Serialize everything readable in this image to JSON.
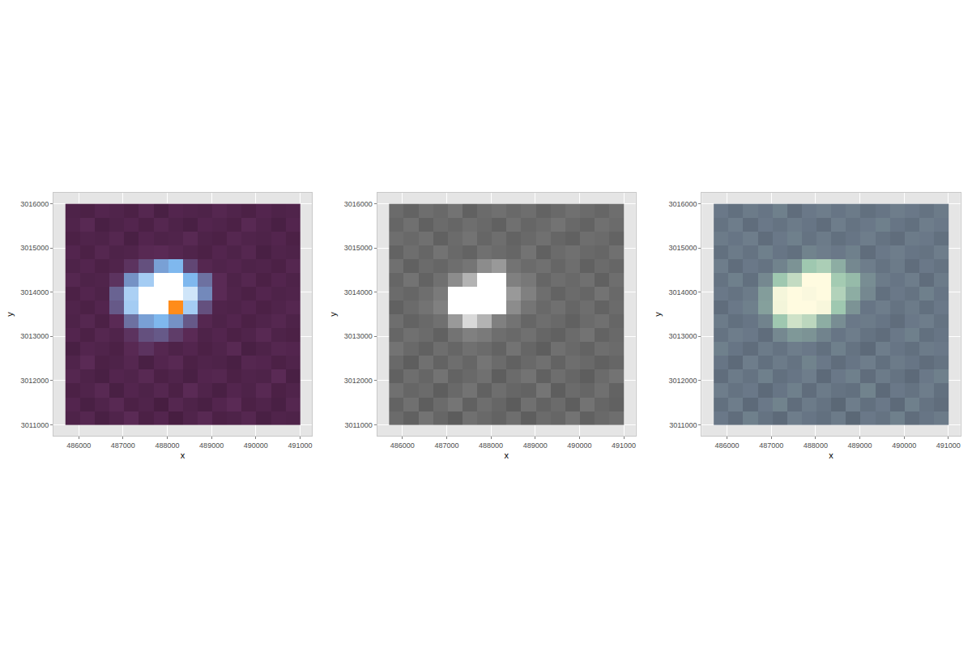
{
  "chart_data": [
    {
      "type": "heatmap",
      "xlabel": "x",
      "ylabel": "y",
      "xlim": [
        485430,
        491270
      ],
      "ylim": [
        3010750,
        3016250
      ],
      "xticks": [
        486000,
        487000,
        488000,
        489000,
        490000,
        491000
      ],
      "yticks": [
        3011000,
        3012000,
        3013000,
        3014000,
        3015000,
        3016000
      ],
      "grid": true,
      "zlim": [
        0,
        1
      ],
      "x": [
        485700,
        486031.25,
        486362.5,
        486693.75,
        487025,
        487356.25,
        487687.5,
        488018.75,
        488350,
        488681.25,
        489012.5,
        489343.75,
        489675,
        490006.25,
        490337.5,
        490668.75,
        491000
      ],
      "y": [
        3011000,
        3011312.5,
        3011625,
        3011937.5,
        3012250,
        3012562.5,
        3012875,
        3013187.5,
        3013500,
        3013812.5,
        3014125,
        3014437.5,
        3014750,
        3015062.5,
        3015375,
        3015687.5,
        3016000
      ],
      "cells": [
        [
          0.15,
          0.18,
          0.13,
          0.16,
          0.2,
          0.14,
          0.17,
          0.12,
          0.16,
          0.19,
          0.14,
          0.15,
          0.18,
          0.13,
          0.16,
          0.15
        ],
        [
          0.17,
          0.13,
          0.16,
          0.19,
          0.14,
          0.16,
          0.12,
          0.18,
          0.15,
          0.13,
          0.17,
          0.2,
          0.14,
          0.16,
          0.13,
          0.18
        ],
        [
          0.14,
          0.16,
          0.19,
          0.13,
          0.17,
          0.15,
          0.18,
          0.14,
          0.2,
          0.16,
          0.13,
          0.17,
          0.15,
          0.19,
          0.14,
          0.16
        ],
        [
          0.18,
          0.15,
          0.13,
          0.17,
          0.16,
          0.19,
          0.14,
          0.16,
          0.13,
          0.17,
          0.18,
          0.14,
          0.16,
          0.15,
          0.2,
          0.13
        ],
        [
          0.16,
          0.2,
          0.14,
          0.15,
          0.18,
          0.13,
          0.17,
          0.19,
          0.14,
          0.16,
          0.15,
          0.13,
          0.18,
          0.17,
          0.14,
          0.16
        ],
        [
          0.13,
          0.17,
          0.16,
          0.14,
          0.19,
          0.22,
          0.18,
          0.15,
          0.17,
          0.14,
          0.16,
          0.19,
          0.13,
          0.15,
          0.18,
          0.17
        ],
        [
          0.17,
          0.14,
          0.18,
          0.16,
          0.22,
          0.28,
          0.3,
          0.24,
          0.2,
          0.15,
          0.17,
          0.14,
          0.16,
          0.19,
          0.15,
          0.14
        ],
        [
          0.15,
          0.18,
          0.14,
          0.2,
          0.35,
          0.45,
          0.5,
          0.42,
          0.3,
          0.18,
          0.15,
          0.17,
          0.14,
          0.16,
          0.18,
          0.15
        ],
        [
          0.16,
          0.14,
          0.17,
          0.3,
          0.6,
          0.9,
          0.95,
          1.0,
          0.6,
          0.28,
          0.16,
          0.15,
          0.17,
          0.14,
          0.16,
          0.18
        ],
        [
          0.14,
          0.17,
          0.15,
          0.32,
          0.62,
          0.92,
          0.88,
          0.93,
          0.72,
          0.4,
          0.2,
          0.16,
          0.14,
          0.17,
          0.15,
          0.16
        ],
        [
          0.18,
          0.15,
          0.16,
          0.22,
          0.42,
          0.6,
          0.88,
          0.85,
          0.5,
          0.35,
          0.2,
          0.15,
          0.18,
          0.14,
          0.17,
          0.15
        ],
        [
          0.15,
          0.17,
          0.14,
          0.16,
          0.22,
          0.28,
          0.45,
          0.5,
          0.26,
          0.18,
          0.16,
          0.17,
          0.15,
          0.16,
          0.14,
          0.18
        ],
        [
          0.17,
          0.14,
          0.18,
          0.15,
          0.16,
          0.19,
          0.2,
          0.18,
          0.16,
          0.14,
          0.17,
          0.15,
          0.18,
          0.13,
          0.16,
          0.15
        ],
        [
          0.14,
          0.16,
          0.15,
          0.18,
          0.13,
          0.17,
          0.15,
          0.16,
          0.19,
          0.15,
          0.14,
          0.18,
          0.16,
          0.15,
          0.17,
          0.14
        ],
        [
          0.16,
          0.19,
          0.13,
          0.15,
          0.17,
          0.14,
          0.18,
          0.15,
          0.13,
          0.17,
          0.16,
          0.14,
          0.19,
          0.16,
          0.13,
          0.17
        ],
        [
          0.15,
          0.14,
          0.17,
          0.16,
          0.14,
          0.18,
          0.13,
          0.17,
          0.16,
          0.15,
          0.18,
          0.16,
          0.14,
          0.17,
          0.15,
          0.16
        ]
      ]
    },
    {
      "type": "heatmap",
      "xlabel": "x",
      "ylabel": "y",
      "xlim": [
        485430,
        491270
      ],
      "ylim": [
        3010750,
        3016250
      ],
      "xticks": [
        486000,
        487000,
        488000,
        489000,
        490000,
        491000
      ],
      "yticks": [
        3011000,
        3012000,
        3013000,
        3014000,
        3015000,
        3016000
      ],
      "grid": true,
      "zlim": [
        0,
        1
      ],
      "x": [
        485700,
        486031.25,
        486362.5,
        486693.75,
        487025,
        487356.25,
        487687.5,
        488018.75,
        488350,
        488681.25,
        489012.5,
        489343.75,
        489675,
        490006.25,
        490337.5,
        490668.75,
        491000
      ],
      "y": [
        3011000,
        3011312.5,
        3011625,
        3011937.5,
        3012250,
        3012562.5,
        3012875,
        3013187.5,
        3013500,
        3013812.5,
        3014125,
        3014437.5,
        3014750,
        3015062.5,
        3015375,
        3015687.5,
        3016000
      ],
      "cells": [
        [
          0.42,
          0.38,
          0.45,
          0.4,
          0.36,
          0.44,
          0.41,
          0.39,
          0.43,
          0.37,
          0.42,
          0.4,
          0.45,
          0.38,
          0.41,
          0.43
        ],
        [
          0.39,
          0.44,
          0.37,
          0.42,
          0.46,
          0.38,
          0.43,
          0.4,
          0.36,
          0.44,
          0.39,
          0.42,
          0.37,
          0.45,
          0.4,
          0.38
        ],
        [
          0.44,
          0.4,
          0.42,
          0.37,
          0.41,
          0.45,
          0.38,
          0.43,
          0.4,
          0.39,
          0.46,
          0.37,
          0.42,
          0.4,
          0.44,
          0.39
        ],
        [
          0.38,
          0.43,
          0.4,
          0.45,
          0.39,
          0.41,
          0.44,
          0.37,
          0.42,
          0.45,
          0.38,
          0.43,
          0.4,
          0.37,
          0.42,
          0.45
        ],
        [
          0.41,
          0.37,
          0.44,
          0.39,
          0.43,
          0.4,
          0.46,
          0.42,
          0.38,
          0.41,
          0.44,
          0.39,
          0.43,
          0.41,
          0.38,
          0.4
        ],
        [
          0.45,
          0.41,
          0.38,
          0.43,
          0.4,
          0.44,
          0.42,
          0.39,
          0.45,
          0.4,
          0.37,
          0.44,
          0.41,
          0.39,
          0.43,
          0.42
        ],
        [
          0.4,
          0.44,
          0.42,
          0.38,
          0.45,
          0.5,
          0.48,
          0.43,
          0.41,
          0.44,
          0.4,
          0.38,
          0.42,
          0.45,
          0.39,
          0.41
        ],
        [
          0.43,
          0.39,
          0.41,
          0.44,
          0.6,
          0.85,
          0.7,
          0.5,
          0.45,
          0.4,
          0.43,
          0.41,
          0.38,
          0.42,
          0.44,
          0.4
        ],
        [
          0.38,
          0.42,
          0.45,
          0.5,
          1.0,
          1.0,
          1.0,
          1.0,
          0.55,
          0.46,
          0.41,
          0.44,
          0.4,
          0.43,
          0.39,
          0.42
        ],
        [
          0.42,
          0.4,
          0.43,
          0.48,
          1.0,
          1.0,
          1.0,
          1.0,
          0.6,
          0.5,
          0.43,
          0.39,
          0.42,
          0.4,
          0.45,
          0.41
        ],
        [
          0.4,
          0.45,
          0.39,
          0.44,
          0.55,
          0.7,
          1.0,
          1.0,
          0.5,
          0.47,
          0.4,
          0.43,
          0.41,
          0.44,
          0.38,
          0.43
        ],
        [
          0.44,
          0.38,
          0.42,
          0.4,
          0.43,
          0.46,
          0.55,
          0.6,
          0.45,
          0.42,
          0.44,
          0.4,
          0.43,
          0.38,
          0.42,
          0.4
        ],
        [
          0.39,
          0.43,
          0.4,
          0.45,
          0.41,
          0.39,
          0.44,
          0.42,
          0.4,
          0.45,
          0.38,
          0.42,
          0.44,
          0.41,
          0.4,
          0.44
        ],
        [
          0.43,
          0.41,
          0.44,
          0.38,
          0.42,
          0.45,
          0.4,
          0.43,
          0.39,
          0.41,
          0.44,
          0.4,
          0.38,
          0.43,
          0.42,
          0.39
        ],
        [
          0.4,
          0.44,
          0.38,
          0.42,
          0.4,
          0.43,
          0.41,
          0.38,
          0.44,
          0.4,
          0.42,
          0.45,
          0.41,
          0.39,
          0.44,
          0.42
        ],
        [
          0.42,
          0.39,
          0.43,
          0.41,
          0.45,
          0.38,
          0.42,
          0.44,
          0.41,
          0.43,
          0.39,
          0.41,
          0.44,
          0.42,
          0.4,
          0.43
        ]
      ]
    },
    {
      "type": "heatmap",
      "xlabel": "x",
      "ylabel": "y",
      "xlim": [
        485430,
        491270
      ],
      "ylim": [
        3010750,
        3016250
      ],
      "xticks": [
        486000,
        487000,
        488000,
        489000,
        490000,
        491000
      ],
      "yticks": [
        3011000,
        3012000,
        3013000,
        3014000,
        3015000,
        3016000
      ],
      "grid": true,
      "zlim": [
        0,
        1
      ],
      "x": [
        485700,
        486031.25,
        486362.5,
        486693.75,
        487025,
        487356.25,
        487687.5,
        488018.75,
        488350,
        488681.25,
        489012.5,
        489343.75,
        489675,
        490006.25,
        490337.5,
        490668.75,
        491000
      ],
      "y": [
        3011000,
        3011312.5,
        3011625,
        3011937.5,
        3012250,
        3012562.5,
        3012875,
        3013187.5,
        3013500,
        3013812.5,
        3014125,
        3014437.5,
        3014750,
        3015062.5,
        3015375,
        3015687.5,
        3016000
      ],
      "cells": [
        [
          0.3,
          0.26,
          0.33,
          0.28,
          0.25,
          0.32,
          0.29,
          0.27,
          0.31,
          0.24,
          0.3,
          0.28,
          0.33,
          0.26,
          0.29,
          0.31
        ],
        [
          0.27,
          0.32,
          0.25,
          0.3,
          0.34,
          0.26,
          0.31,
          0.28,
          0.24,
          0.32,
          0.27,
          0.3,
          0.25,
          0.33,
          0.28,
          0.26
        ],
        [
          0.32,
          0.28,
          0.3,
          0.25,
          0.29,
          0.33,
          0.26,
          0.31,
          0.28,
          0.27,
          0.34,
          0.25,
          0.3,
          0.28,
          0.32,
          0.27
        ],
        [
          0.26,
          0.31,
          0.28,
          0.33,
          0.27,
          0.29,
          0.32,
          0.25,
          0.3,
          0.33,
          0.26,
          0.31,
          0.28,
          0.25,
          0.3,
          0.33
        ],
        [
          0.29,
          0.25,
          0.32,
          0.27,
          0.31,
          0.28,
          0.34,
          0.3,
          0.26,
          0.29,
          0.32,
          0.27,
          0.31,
          0.29,
          0.26,
          0.28
        ],
        [
          0.33,
          0.29,
          0.26,
          0.31,
          0.28,
          0.32,
          0.3,
          0.27,
          0.33,
          0.28,
          0.25,
          0.32,
          0.29,
          0.27,
          0.31,
          0.3
        ],
        [
          0.28,
          0.32,
          0.3,
          0.26,
          0.36,
          0.42,
          0.4,
          0.34,
          0.29,
          0.32,
          0.28,
          0.26,
          0.3,
          0.33,
          0.27,
          0.29
        ],
        [
          0.31,
          0.27,
          0.29,
          0.34,
          0.6,
          0.8,
          0.72,
          0.5,
          0.38,
          0.3,
          0.31,
          0.29,
          0.26,
          0.3,
          0.32,
          0.28
        ],
        [
          0.26,
          0.3,
          0.33,
          0.45,
          0.95,
          1.0,
          1.0,
          0.97,
          0.6,
          0.4,
          0.29,
          0.32,
          0.28,
          0.31,
          0.27,
          0.3
        ],
        [
          0.3,
          0.28,
          0.31,
          0.44,
          0.96,
          1.0,
          0.98,
          1.0,
          0.68,
          0.5,
          0.36,
          0.27,
          0.3,
          0.28,
          0.33,
          0.29
        ],
        [
          0.28,
          0.33,
          0.27,
          0.36,
          0.6,
          0.75,
          1.0,
          1.0,
          0.62,
          0.55,
          0.38,
          0.31,
          0.29,
          0.32,
          0.26,
          0.31
        ],
        [
          0.32,
          0.26,
          0.3,
          0.28,
          0.34,
          0.4,
          0.6,
          0.65,
          0.5,
          0.36,
          0.32,
          0.28,
          0.31,
          0.26,
          0.3,
          0.28
        ],
        [
          0.27,
          0.31,
          0.28,
          0.33,
          0.29,
          0.27,
          0.34,
          0.32,
          0.3,
          0.33,
          0.26,
          0.3,
          0.32,
          0.29,
          0.28,
          0.32
        ],
        [
          0.31,
          0.29,
          0.32,
          0.26,
          0.3,
          0.33,
          0.28,
          0.31,
          0.27,
          0.29,
          0.32,
          0.28,
          0.26,
          0.31,
          0.3,
          0.27
        ],
        [
          0.28,
          0.32,
          0.26,
          0.3,
          0.28,
          0.31,
          0.29,
          0.26,
          0.32,
          0.28,
          0.3,
          0.33,
          0.29,
          0.27,
          0.32,
          0.3
        ],
        [
          0.3,
          0.27,
          0.31,
          0.29,
          0.33,
          0.26,
          0.3,
          0.32,
          0.29,
          0.31,
          0.27,
          0.29,
          0.32,
          0.3,
          0.28,
          0.31
        ]
      ]
    }
  ]
}
